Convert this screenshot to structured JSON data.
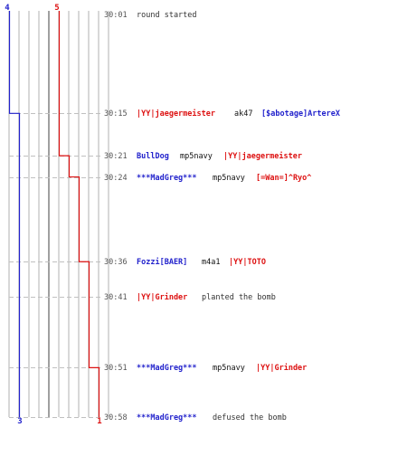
{
  "colors": {
    "team_blue": "#2222cc",
    "team_red": "#dd1111",
    "grid": "#b0b0b0",
    "grid_center": "#888888",
    "dash": "#c0c0c0",
    "time": "#555555",
    "message": "#333333",
    "weapon": "#111111"
  },
  "round_range": {
    "start": "30:01",
    "end": "30:58"
  },
  "top_counts": {
    "blue": "4",
    "red": "5"
  },
  "bottom_counts": {
    "blue": "3",
    "red": "1"
  },
  "team_lines": {
    "blue": [
      {
        "time": "30:01",
        "alive": 4
      },
      {
        "time": "30:15",
        "alive": 3
      },
      {
        "time": "30:58",
        "alive": 3
      }
    ],
    "red": [
      {
        "time": "30:01",
        "alive": 5
      },
      {
        "time": "30:21",
        "alive": 4
      },
      {
        "time": "30:24",
        "alive": 3
      },
      {
        "time": "30:36",
        "alive": 2
      },
      {
        "time": "30:51",
        "alive": 1
      },
      {
        "time": "30:58",
        "alive": 1
      }
    ]
  },
  "events": [
    {
      "time": "30:01",
      "parts": [
        {
          "text": "round started",
          "role": "message"
        }
      ]
    },
    {
      "time": "30:15",
      "parts": [
        {
          "text": "|YY|jaegermeister",
          "role": "red"
        },
        {
          "text": "ak47",
          "role": "weapon"
        },
        {
          "text": "[$abotage]ArtereX",
          "role": "blue"
        }
      ]
    },
    {
      "time": "30:21",
      "parts": [
        {
          "text": "BullDog",
          "role": "blue"
        },
        {
          "text": "mp5navy",
          "role": "weapon"
        },
        {
          "text": "|YY|jaegermeister",
          "role": "red"
        }
      ]
    },
    {
      "time": "30:24",
      "parts": [
        {
          "text": "***MadGreg***",
          "role": "blue"
        },
        {
          "text": "mp5navy",
          "role": "weapon"
        },
        {
          "text": "[=Wan=]^Ryo^",
          "role": "red"
        }
      ]
    },
    {
      "time": "30:36",
      "parts": [
        {
          "text": "Fozzi[BAER]",
          "role": "blue"
        },
        {
          "text": "m4a1",
          "role": "weapon"
        },
        {
          "text": "|YY|TOTO",
          "role": "red"
        }
      ]
    },
    {
      "time": "30:41",
      "parts": [
        {
          "text": "|YY|Grinder",
          "role": "red"
        },
        {
          "text": "planted the bomb",
          "role": "message"
        }
      ]
    },
    {
      "time": "30:51",
      "parts": [
        {
          "text": "***MadGreg***",
          "role": "blue"
        },
        {
          "text": "mp5navy",
          "role": "weapon"
        },
        {
          "text": "|YY|Grinder",
          "role": "red"
        }
      ]
    },
    {
      "time": "30:58",
      "parts": [
        {
          "text": "***MadGreg***",
          "role": "blue"
        },
        {
          "text": "defused the bomb",
          "role": "message"
        }
      ]
    }
  ]
}
